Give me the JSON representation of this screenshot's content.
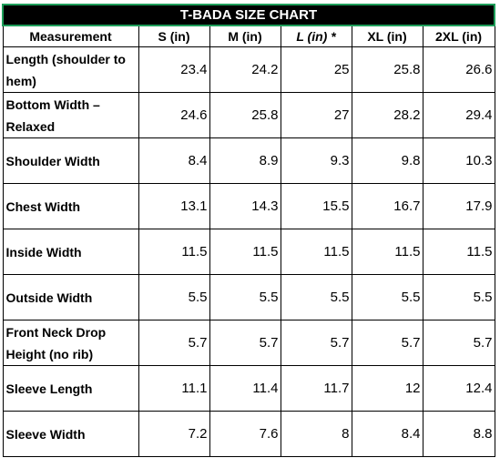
{
  "title": "T-BADA SIZE CHART",
  "headers": [
    "Measurement",
    "S (in)",
    "M (in)",
    "L (in) *",
    "XL (in)",
    "2XL (in)"
  ],
  "rows": [
    {
      "label": "Length (shoulder to hem)",
      "values": [
        "23.4",
        "24.2",
        "25",
        "25.8",
        "26.6"
      ]
    },
    {
      "label": "Bottom Width – Relaxed",
      "values": [
        "24.6",
        "25.8",
        "27",
        "28.2",
        "29.4"
      ]
    },
    {
      "label": "Shoulder Width",
      "values": [
        "8.4",
        "8.9",
        "9.3",
        "9.8",
        "10.3"
      ]
    },
    {
      "label": "Chest Width",
      "values": [
        "13.1",
        "14.3",
        "15.5",
        "16.7",
        "17.9"
      ]
    },
    {
      "label": "Inside Width",
      "values": [
        "11.5",
        "11.5",
        "11.5",
        "11.5",
        "11.5"
      ]
    },
    {
      "label": "Outside Width",
      "values": [
        "5.5",
        "5.5",
        "5.5",
        "5.5",
        "5.5"
      ]
    },
    {
      "label": "Front Neck Drop Height (no rib)",
      "values": [
        "5.7",
        "5.7",
        "5.7",
        "5.7",
        "5.7"
      ]
    },
    {
      "label": "Sleeve Length",
      "values": [
        "11.1",
        "11.4",
        "11.7",
        "12",
        "12.4"
      ]
    },
    {
      "label": "Sleeve Width",
      "values": [
        "7.2",
        "7.6",
        "8",
        "8.4",
        "8.8"
      ]
    }
  ],
  "colors": {
    "title_background": "#000000",
    "title_text": "#ffffff",
    "selection_border": "#1e9e5a",
    "grid": "#000000"
  }
}
